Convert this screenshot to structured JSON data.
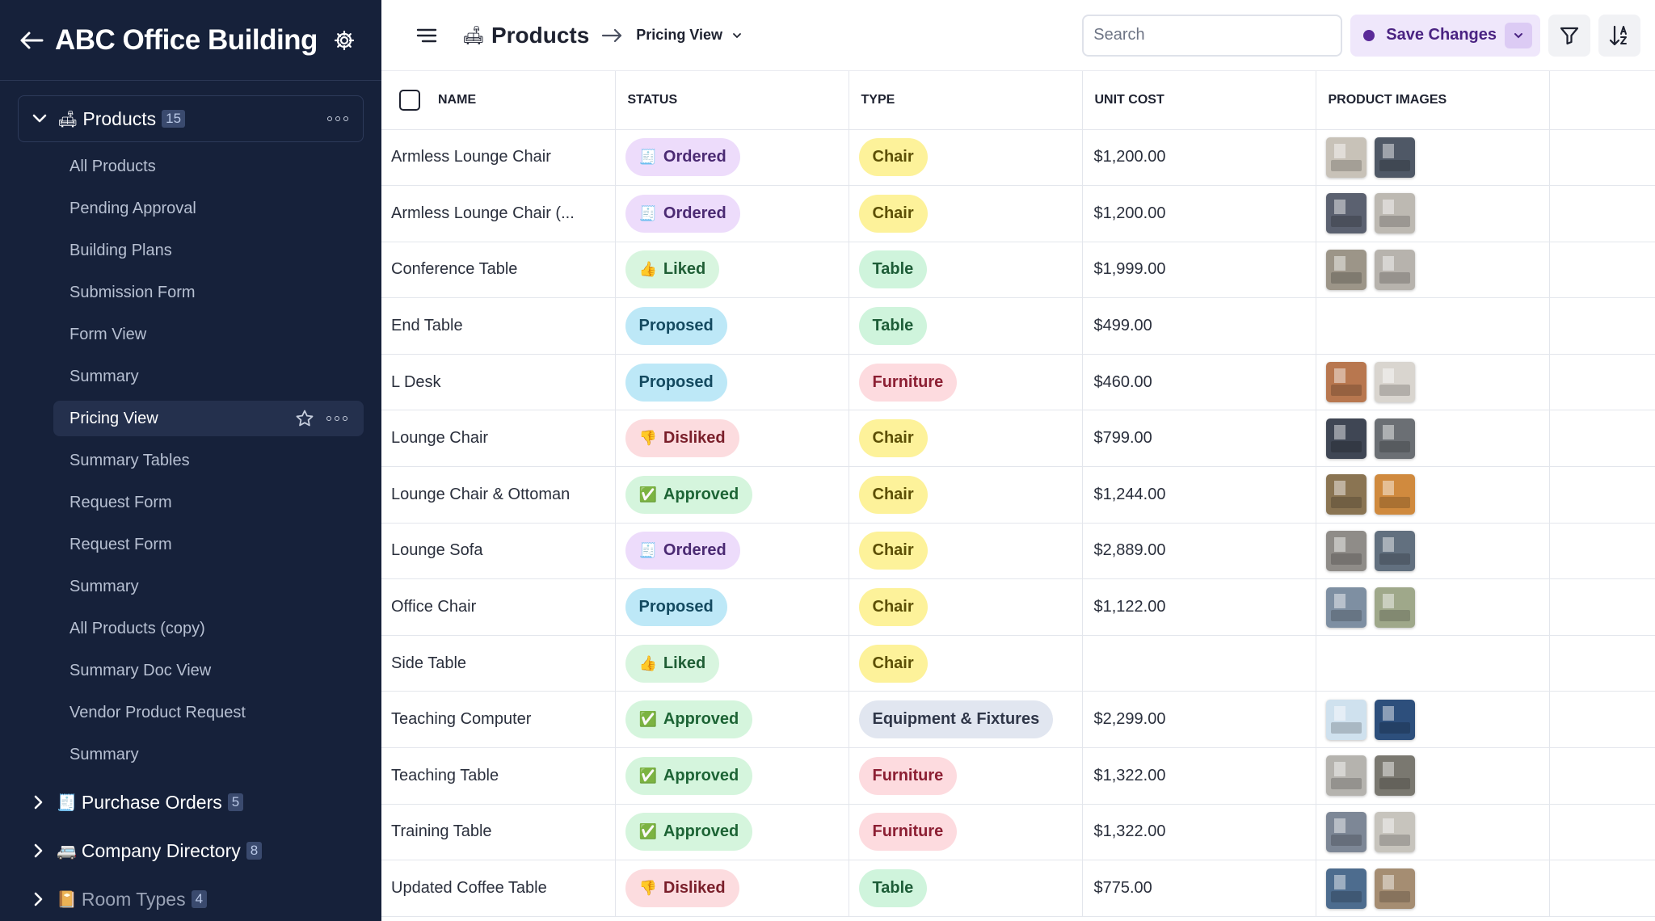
{
  "app": {
    "title": "ABC Office Building"
  },
  "sidebar": {
    "products_group": {
      "emoji": "🛋",
      "label": "Products",
      "count": "15"
    },
    "views": [
      {
        "label": "All Products"
      },
      {
        "label": "Pending Approval"
      },
      {
        "label": "Building Plans"
      },
      {
        "label": "Submission Form"
      },
      {
        "label": "Form View"
      },
      {
        "label": "Summary"
      },
      {
        "label": "Pricing View"
      },
      {
        "label": "Summary Tables"
      },
      {
        "label": "Request Form"
      },
      {
        "label": "Request Form"
      },
      {
        "label": "Summary"
      },
      {
        "label": "All Products (copy)"
      },
      {
        "label": "Summary Doc View"
      },
      {
        "label": "Vendor Product Request"
      },
      {
        "label": "Summary"
      }
    ],
    "active_view": "Pricing View",
    "groups": [
      {
        "emoji": "🧾",
        "label": "Purchase Orders",
        "count": "5"
      },
      {
        "emoji": "🚐",
        "label": "Company Directory",
        "count": "8"
      },
      {
        "emoji": "📔",
        "label": "Room Types",
        "count": "4"
      }
    ]
  },
  "header": {
    "emoji": "🛋",
    "title": "Products",
    "view_name": "Pricing View",
    "search_placeholder": "Search",
    "save_label": "Save Changes"
  },
  "table": {
    "columns": [
      "NAME",
      "STATUS",
      "TYPE",
      "UNIT COST",
      "PRODUCT IMAGES"
    ],
    "rows": [
      {
        "name": "Armless Lounge Chair",
        "status": "Ordered",
        "type": "Chair",
        "cost": "$1,200.00",
        "images": [
          "#c8c2b8",
          "#4f5866"
        ]
      },
      {
        "name": "Armless Lounge Chair (...",
        "status": "Ordered",
        "type": "Chair",
        "cost": "$1,200.00",
        "images": [
          "#5b6170",
          "#bdb9b2"
        ]
      },
      {
        "name": "Conference Table",
        "status": "Liked",
        "type": "Table",
        "cost": "$1,999.00",
        "images": [
          "#9c9588",
          "#b7b3ad"
        ]
      },
      {
        "name": "End Table",
        "status": "Proposed",
        "type": "Table",
        "cost": "$499.00",
        "images": []
      },
      {
        "name": "L Desk",
        "status": "Proposed",
        "type": "Furniture",
        "cost": "$460.00",
        "images": [
          "#b8774f",
          "#d9d5cf"
        ]
      },
      {
        "name": "Lounge Chair",
        "status": "Disliked",
        "type": "Chair",
        "cost": "$799.00",
        "images": [
          "#3f4654",
          "#6b6f74"
        ]
      },
      {
        "name": "Lounge Chair & Ottoman",
        "status": "Approved",
        "type": "Chair",
        "cost": "$1,244.00",
        "images": [
          "#8a7452",
          "#d08a3e"
        ]
      },
      {
        "name": "Lounge Sofa",
        "status": "Ordered",
        "type": "Chair",
        "cost": "$2,889.00",
        "images": [
          "#8f8c88",
          "#62707f"
        ]
      },
      {
        "name": "Office Chair",
        "status": "Proposed",
        "type": "Chair",
        "cost": "$1,122.00",
        "images": [
          "#7e8fa2",
          "#9fa88a"
        ]
      },
      {
        "name": "Side Table",
        "status": "Liked",
        "type": "Chair",
        "cost": "",
        "images": []
      },
      {
        "name": "Teaching Computer",
        "status": "Approved",
        "type": "Equipment & Fixtures",
        "cost": "$2,299.00",
        "images": [
          "#cfe1ee",
          "#2d4f7c"
        ]
      },
      {
        "name": "Teaching Table",
        "status": "Approved",
        "type": "Furniture",
        "cost": "$1,322.00",
        "images": [
          "#b5b3ae",
          "#7a7870"
        ]
      },
      {
        "name": "Training Table",
        "status": "Approved",
        "type": "Furniture",
        "cost": "$1,322.00",
        "images": [
          "#7d8796",
          "#c7c4bd"
        ]
      },
      {
        "name": "Updated Coffee Table",
        "status": "Disliked",
        "type": "Table",
        "cost": "$775.00",
        "images": [
          "#4d6c8e",
          "#a58d72"
        ]
      }
    ]
  },
  "styles": {
    "status": {
      "Ordered": {
        "bg": "#eddcfb",
        "fg": "#4b2a73",
        "emoji": "🧾"
      },
      "Liked": {
        "bg": "#d8f5df",
        "fg": "#1f5e35",
        "emoji": "👍"
      },
      "Proposed": {
        "bg": "#bde8f7",
        "fg": "#144a60",
        "emoji": ""
      },
      "Disliked": {
        "bg": "#fcdcdf",
        "fg": "#7a1f2a",
        "emoji": "👎"
      },
      "Approved": {
        "bg": "#d5f5dd",
        "fg": "#1d6435",
        "emoji": "✅"
      }
    },
    "type": {
      "Chair": {
        "bg": "#fdf29a",
        "fg": "#5c4f05"
      },
      "Table": {
        "bg": "#cff4dc",
        "fg": "#1d5c37"
      },
      "Furniture": {
        "bg": "#fddbdf",
        "fg": "#8c1f33"
      },
      "Equipment & Fixtures": {
        "bg": "#e1e6f0",
        "fg": "#2f3648"
      }
    }
  }
}
